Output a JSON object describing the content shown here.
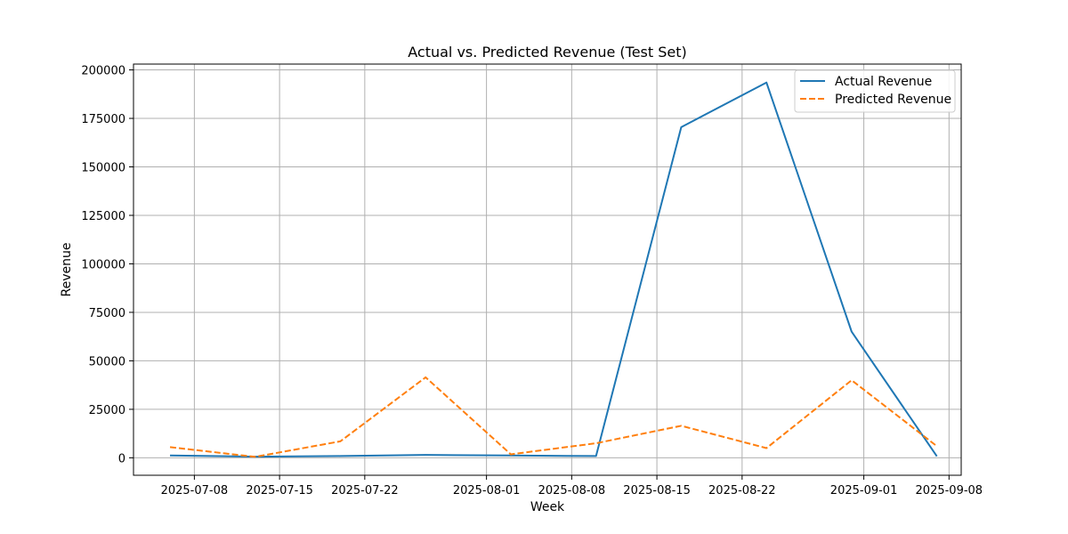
{
  "chart_data": {
    "type": "line",
    "title": "Actual vs. Predicted Revenue (Test Set)",
    "xlabel": "Week",
    "ylabel": "Revenue",
    "x_ticks": [
      "2025-07-08",
      "2025-07-15",
      "2025-07-22",
      "2025-08-01",
      "2025-08-08",
      "2025-08-15",
      "2025-08-22",
      "2025-09-01",
      "2025-09-08"
    ],
    "y_ticks": [
      0,
      25000,
      50000,
      75000,
      100000,
      125000,
      150000,
      175000,
      200000
    ],
    "xlim": [
      "2025-07-03",
      "2025-09-09"
    ],
    "ylim": [
      -9000,
      203000
    ],
    "grid": true,
    "legend_position": "top-right",
    "x": [
      "2025-07-06",
      "2025-07-13",
      "2025-07-20",
      "2025-07-27",
      "2025-08-03",
      "2025-08-10",
      "2025-08-17",
      "2025-08-24",
      "2025-08-31",
      "2025-09-07"
    ],
    "series": [
      {
        "name": "Actual Revenue",
        "style": "solid",
        "color": "#1f77b4",
        "values": [
          1200,
          600,
          900,
          1500,
          1200,
          900,
          170500,
          193500,
          65000,
          800
        ]
      },
      {
        "name": "Predicted Revenue",
        "style": "dashed",
        "color": "#ff7f0e",
        "values": [
          5500,
          500,
          8500,
          41500,
          1800,
          7500,
          16500,
          5000,
          40000,
          6000
        ]
      }
    ]
  }
}
